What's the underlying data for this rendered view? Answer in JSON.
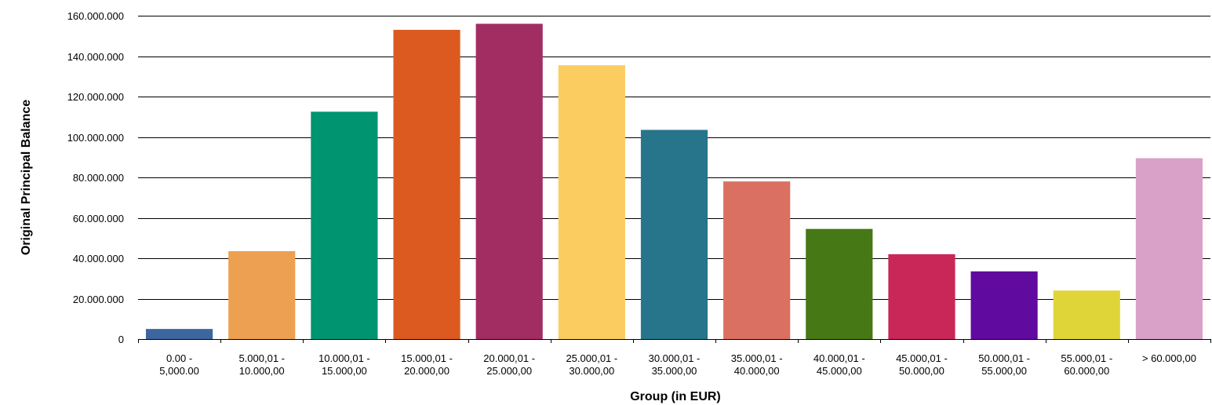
{
  "chart_data": {
    "type": "bar",
    "title": "",
    "xlabel": "Group (in EUR)",
    "ylabel": "Original Principal Balance",
    "ylim": [
      0,
      160000000
    ],
    "yticks": [
      0,
      20000000,
      40000000,
      60000000,
      80000000,
      100000000,
      120000000,
      140000000,
      160000000
    ],
    "ytick_labels": [
      "0",
      "20.000.000",
      "40.000.000",
      "60.000.000",
      "80.000.000",
      "100.000.000",
      "120.000.000",
      "140.000.000",
      "160.000.000"
    ],
    "grid": true,
    "categories": [
      [
        "0.00 -",
        "5,000.00"
      ],
      [
        "5.000,01 -",
        "10.000,00"
      ],
      [
        "10.000,01 -",
        "15.000,00"
      ],
      [
        "15.000,01 -",
        "20.000,00"
      ],
      [
        "20.000,01 -",
        "25.000,00"
      ],
      [
        "25.000,01 -",
        "30.000,00"
      ],
      [
        "30.000,01 -",
        "35.000,00"
      ],
      [
        "35.000,01 -",
        "40.000,00"
      ],
      [
        "40.000,01 -",
        "45.000,00"
      ],
      [
        "45.000,01 -",
        "50.000,00"
      ],
      [
        "50.000,01 -",
        "55.000,00"
      ],
      [
        "55.000,01 -",
        "60.000,00"
      ],
      [
        "> 60.000,00"
      ]
    ],
    "values": [
      5000000,
      43500000,
      112500000,
      153000000,
      156000000,
      135500000,
      103500000,
      78000000,
      54500000,
      42000000,
      33500000,
      24000000,
      89500000
    ],
    "colors": [
      "#3e669e",
      "#eea052",
      "#009470",
      "#dc5a20",
      "#a22d62",
      "#fbcd61",
      "#27758b",
      "#da7061",
      "#467815",
      "#c92757",
      "#600a9f",
      "#e0d538",
      "#d9a1c7"
    ]
  }
}
